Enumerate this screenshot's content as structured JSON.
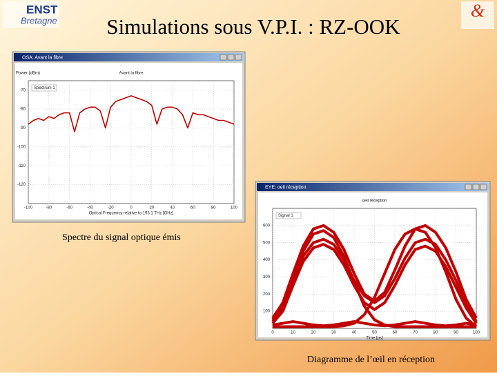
{
  "header": {
    "title": "Simulations sous V.P.I. : RZ-OOK",
    "logo_left": {
      "line1": "ENST",
      "line2": "Bretagne"
    },
    "logo_right": "&"
  },
  "spectrum_window": {
    "title": "OSA: Avant la fibre",
    "caption": "Spectre du signal optique émis",
    "chart_data": {
      "type": "line",
      "title": "Avant la fibre",
      "y_label": "Power (dBm)",
      "x_label": "Optical Frequency relative to 193.1 THz [GHz]",
      "x": [
        -100,
        -95,
        -90,
        -85,
        -80,
        -75,
        -70,
        -65,
        -60,
        -55,
        -50,
        -45,
        -40,
        -35,
        -30,
        -25,
        -20,
        -15,
        -10,
        -5,
        0,
        5,
        10,
        15,
        20,
        25,
        30,
        35,
        40,
        45,
        50,
        55,
        60,
        65,
        70,
        75,
        80,
        85,
        90,
        95,
        100
      ],
      "series": [
        {
          "name": "Spectrum 1",
          "color": "#c00000",
          "values": [
            -88,
            -86,
            -85,
            -86,
            -84,
            -85,
            -83,
            -82,
            -82,
            -92,
            -82,
            -80,
            -79,
            -79,
            -81,
            -90,
            -79,
            -76,
            -75,
            -74,
            -73,
            -74,
            -75,
            -76,
            -78,
            -88,
            -80,
            -79,
            -79,
            -80,
            -83,
            -90,
            -82,
            -83,
            -83,
            -84,
            -85,
            -86,
            -86,
            -87,
            -88
          ]
        }
      ],
      "xlim": [
        -100,
        100
      ],
      "ylim": [
        -130,
        -65
      ],
      "xticks": [
        -100,
        -80,
        -60,
        -40,
        -20,
        0,
        20,
        40,
        60,
        80,
        100
      ],
      "yticks": [
        -120,
        -110,
        -100,
        -90,
        -80,
        -70
      ],
      "grid": true
    }
  },
  "eye_window": {
    "title": "EYE: oeil réception",
    "caption": "Diagramme de l’œil en réception",
    "chart_data": {
      "type": "line",
      "title": "oeil réception",
      "x_label": "Time [ps]",
      "x": [
        0,
        5,
        10,
        15,
        20,
        25,
        30,
        35,
        40,
        45,
        50,
        55,
        60,
        65,
        70,
        75,
        80,
        85,
        90,
        95,
        100
      ],
      "series": [
        {
          "name": "Signal 1",
          "color": "#c00000",
          "traces": [
            [
              60,
              150,
              320,
              480,
              580,
              600,
              560,
              460,
              320,
              200,
              160,
              210,
              340,
              480,
              580,
              600,
              560,
              470,
              330,
              170,
              60
            ],
            [
              40,
              120,
              280,
              420,
              500,
              520,
              490,
              400,
              280,
              190,
              150,
              190,
              290,
              410,
              500,
              520,
              490,
              400,
              280,
              140,
              40
            ],
            [
              50,
              140,
              300,
              450,
              550,
              570,
              530,
              420,
              270,
              130,
              50,
              20,
              10,
              10,
              10,
              10,
              10,
              10,
              10,
              10,
              10
            ],
            [
              10,
              10,
              10,
              10,
              10,
              10,
              10,
              15,
              30,
              80,
              180,
              320,
              460,
              550,
              580,
              560,
              470,
              330,
              170,
              60,
              10
            ],
            [
              20,
              30,
              40,
              30,
              20,
              15,
              20,
              30,
              40,
              30,
              20,
              15,
              20,
              30,
              40,
              30,
              20,
              15,
              20,
              30,
              20
            ],
            [
              30,
              100,
              250,
              390,
              470,
              490,
              460,
              370,
              250,
              150,
              110,
              150,
              250,
              370,
              460,
              480,
              450,
              360,
              240,
              120,
              30
            ]
          ]
        }
      ],
      "xlim": [
        0,
        100
      ],
      "ylim": [
        0,
        700
      ],
      "xticks": [
        0,
        10,
        20,
        30,
        40,
        50,
        60,
        70,
        80,
        90,
        100
      ],
      "yticks": [
        100,
        200,
        300,
        400,
        500,
        600
      ],
      "grid": true
    }
  }
}
